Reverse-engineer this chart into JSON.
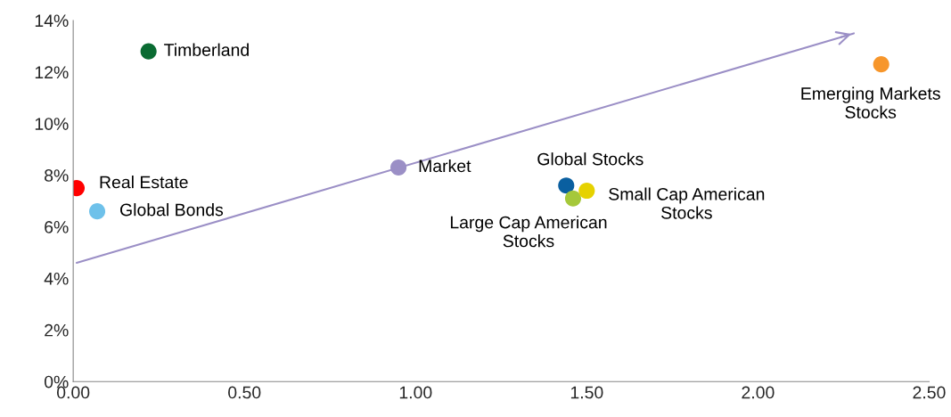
{
  "chart_data": {
    "type": "scatter",
    "xlim": [
      0,
      2.5
    ],
    "ylim": [
      0,
      14
    ],
    "xticks": [
      {
        "value": 0,
        "label": "0.00"
      },
      {
        "value": 0.5,
        "label": "0.50"
      },
      {
        "value": 1,
        "label": "1.00"
      },
      {
        "value": 1.5,
        "label": "1.50"
      },
      {
        "value": 2,
        "label": "2.00"
      },
      {
        "value": 2.5,
        "label": "2.50"
      }
    ],
    "yticks": [
      {
        "value": 0,
        "label": "0%"
      },
      {
        "value": 2,
        "label": "2%"
      },
      {
        "value": 4,
        "label": "4%"
      },
      {
        "value": 6,
        "label": "6%"
      },
      {
        "value": 8,
        "label": "8%"
      },
      {
        "value": 10,
        "label": "10%"
      },
      {
        "value": 12,
        "label": "12%"
      },
      {
        "value": 14,
        "label": "14%"
      }
    ],
    "grid": false,
    "legend": false,
    "marker": "circle",
    "series": [
      {
        "name": "Real Estate",
        "color": "#ff0000",
        "x": [
          0.01
        ],
        "values": [
          7.5
        ]
      },
      {
        "name": "Global Bonds",
        "color": "#6ec1ea",
        "x": [
          0.07
        ],
        "values": [
          6.6
        ]
      },
      {
        "name": "Timberland",
        "color": "#0a6b32",
        "x": [
          0.22
        ],
        "values": [
          12.8
        ]
      },
      {
        "name": "Market",
        "color": "#9b8fc6",
        "x": [
          0.95
        ],
        "values": [
          8.3
        ]
      },
      {
        "name": "Global Stocks",
        "color": "#0a5fa0",
        "x": [
          1.44
        ],
        "values": [
          7.6
        ]
      },
      {
        "name": "Large Cap American Stocks",
        "color": "#a5c83a",
        "x": [
          1.46
        ],
        "values": [
          7.1
        ]
      },
      {
        "name": "Small Cap American Stocks",
        "color": "#e6d200",
        "x": [
          1.5
        ],
        "values": [
          7.4
        ]
      },
      {
        "name": "Emerging Markets Stocks",
        "color": "#f7962b",
        "x": [
          2.36
        ],
        "values": [
          12.3
        ]
      },
      {
        "type": "line",
        "marker": "none",
        "color": "#9b8fc6",
        "x": [
          0.01,
          2.28
        ],
        "values": [
          4.6,
          13.5
        ]
      }
    ]
  }
}
